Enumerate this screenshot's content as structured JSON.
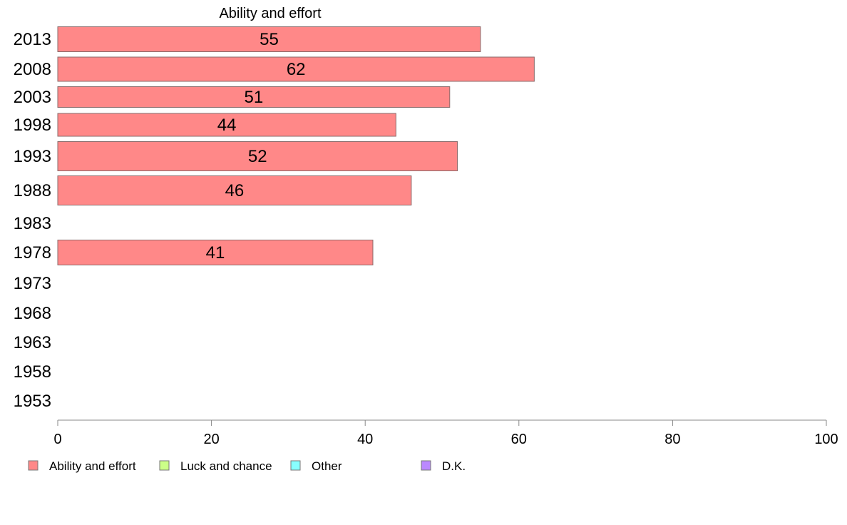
{
  "chart_data": {
    "type": "bar",
    "orientation": "horizontal",
    "title": "Ability and effort",
    "categories": [
      "2013",
      "2008",
      "2003",
      "1998",
      "1993",
      "1988",
      "1983",
      "1978",
      "1973",
      "1968",
      "1963",
      "1958",
      "1953"
    ],
    "series": [
      {
        "name": "Ability and effort",
        "color": "#ff8888",
        "values": [
          55,
          62,
          51,
          44,
          52,
          46,
          null,
          41,
          null,
          null,
          null,
          null,
          null
        ]
      }
    ],
    "data_labels": [
      "55",
      "62",
      "51",
      "44",
      "52",
      "46",
      "",
      "41",
      "",
      "",
      "",
      "",
      ""
    ],
    "xlim": [
      0,
      100
    ],
    "xticks": [
      0,
      20,
      40,
      60,
      80,
      100
    ],
    "grid": false,
    "legend": {
      "position": "bottom",
      "entries": [
        {
          "label": "Ability and effort",
          "color": "#ff8888"
        },
        {
          "label": "Luck and chance",
          "color": "#ccff88"
        },
        {
          "label": "Other",
          "color": "#88ffff"
        },
        {
          "label": "D.K.",
          "color": "#bb88ff"
        }
      ]
    }
  }
}
